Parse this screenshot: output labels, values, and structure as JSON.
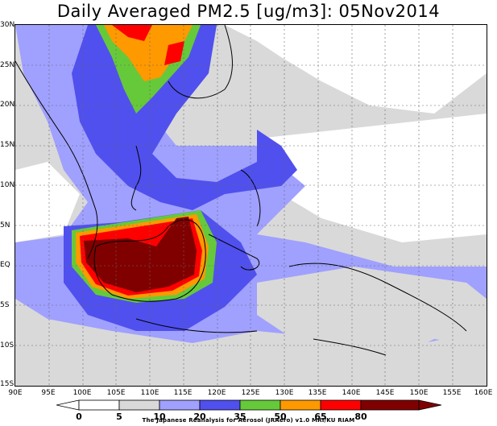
{
  "title": "Daily Averaged PM2.5 [ug/m3]: 05Nov2014",
  "lat_labels": [
    "30N",
    "25N",
    "20N",
    "15N",
    "10N",
    "5N",
    "EQ",
    "5S",
    "10S",
    "15S"
  ],
  "lon_labels": [
    "90E",
    "95E",
    "100E",
    "105E",
    "110E",
    "115E",
    "120E",
    "125E",
    "130E",
    "135E",
    "140E",
    "145E",
    "150E",
    "155E",
    "160E"
  ],
  "colorbar": {
    "ticks": [
      "0",
      "5",
      "10",
      "20",
      "35",
      "50",
      "65",
      "80"
    ],
    "colors": [
      "#ffffff",
      "#d9d9d9",
      "#a0a0ff",
      "#5050ee",
      "#66c93a",
      "#ff9900",
      "#ff0000",
      "#800000"
    ]
  },
  "credit": "The Japanese Reanalysis for Aerosol (JRAero) v1.0 MRI/KU RIAM"
}
